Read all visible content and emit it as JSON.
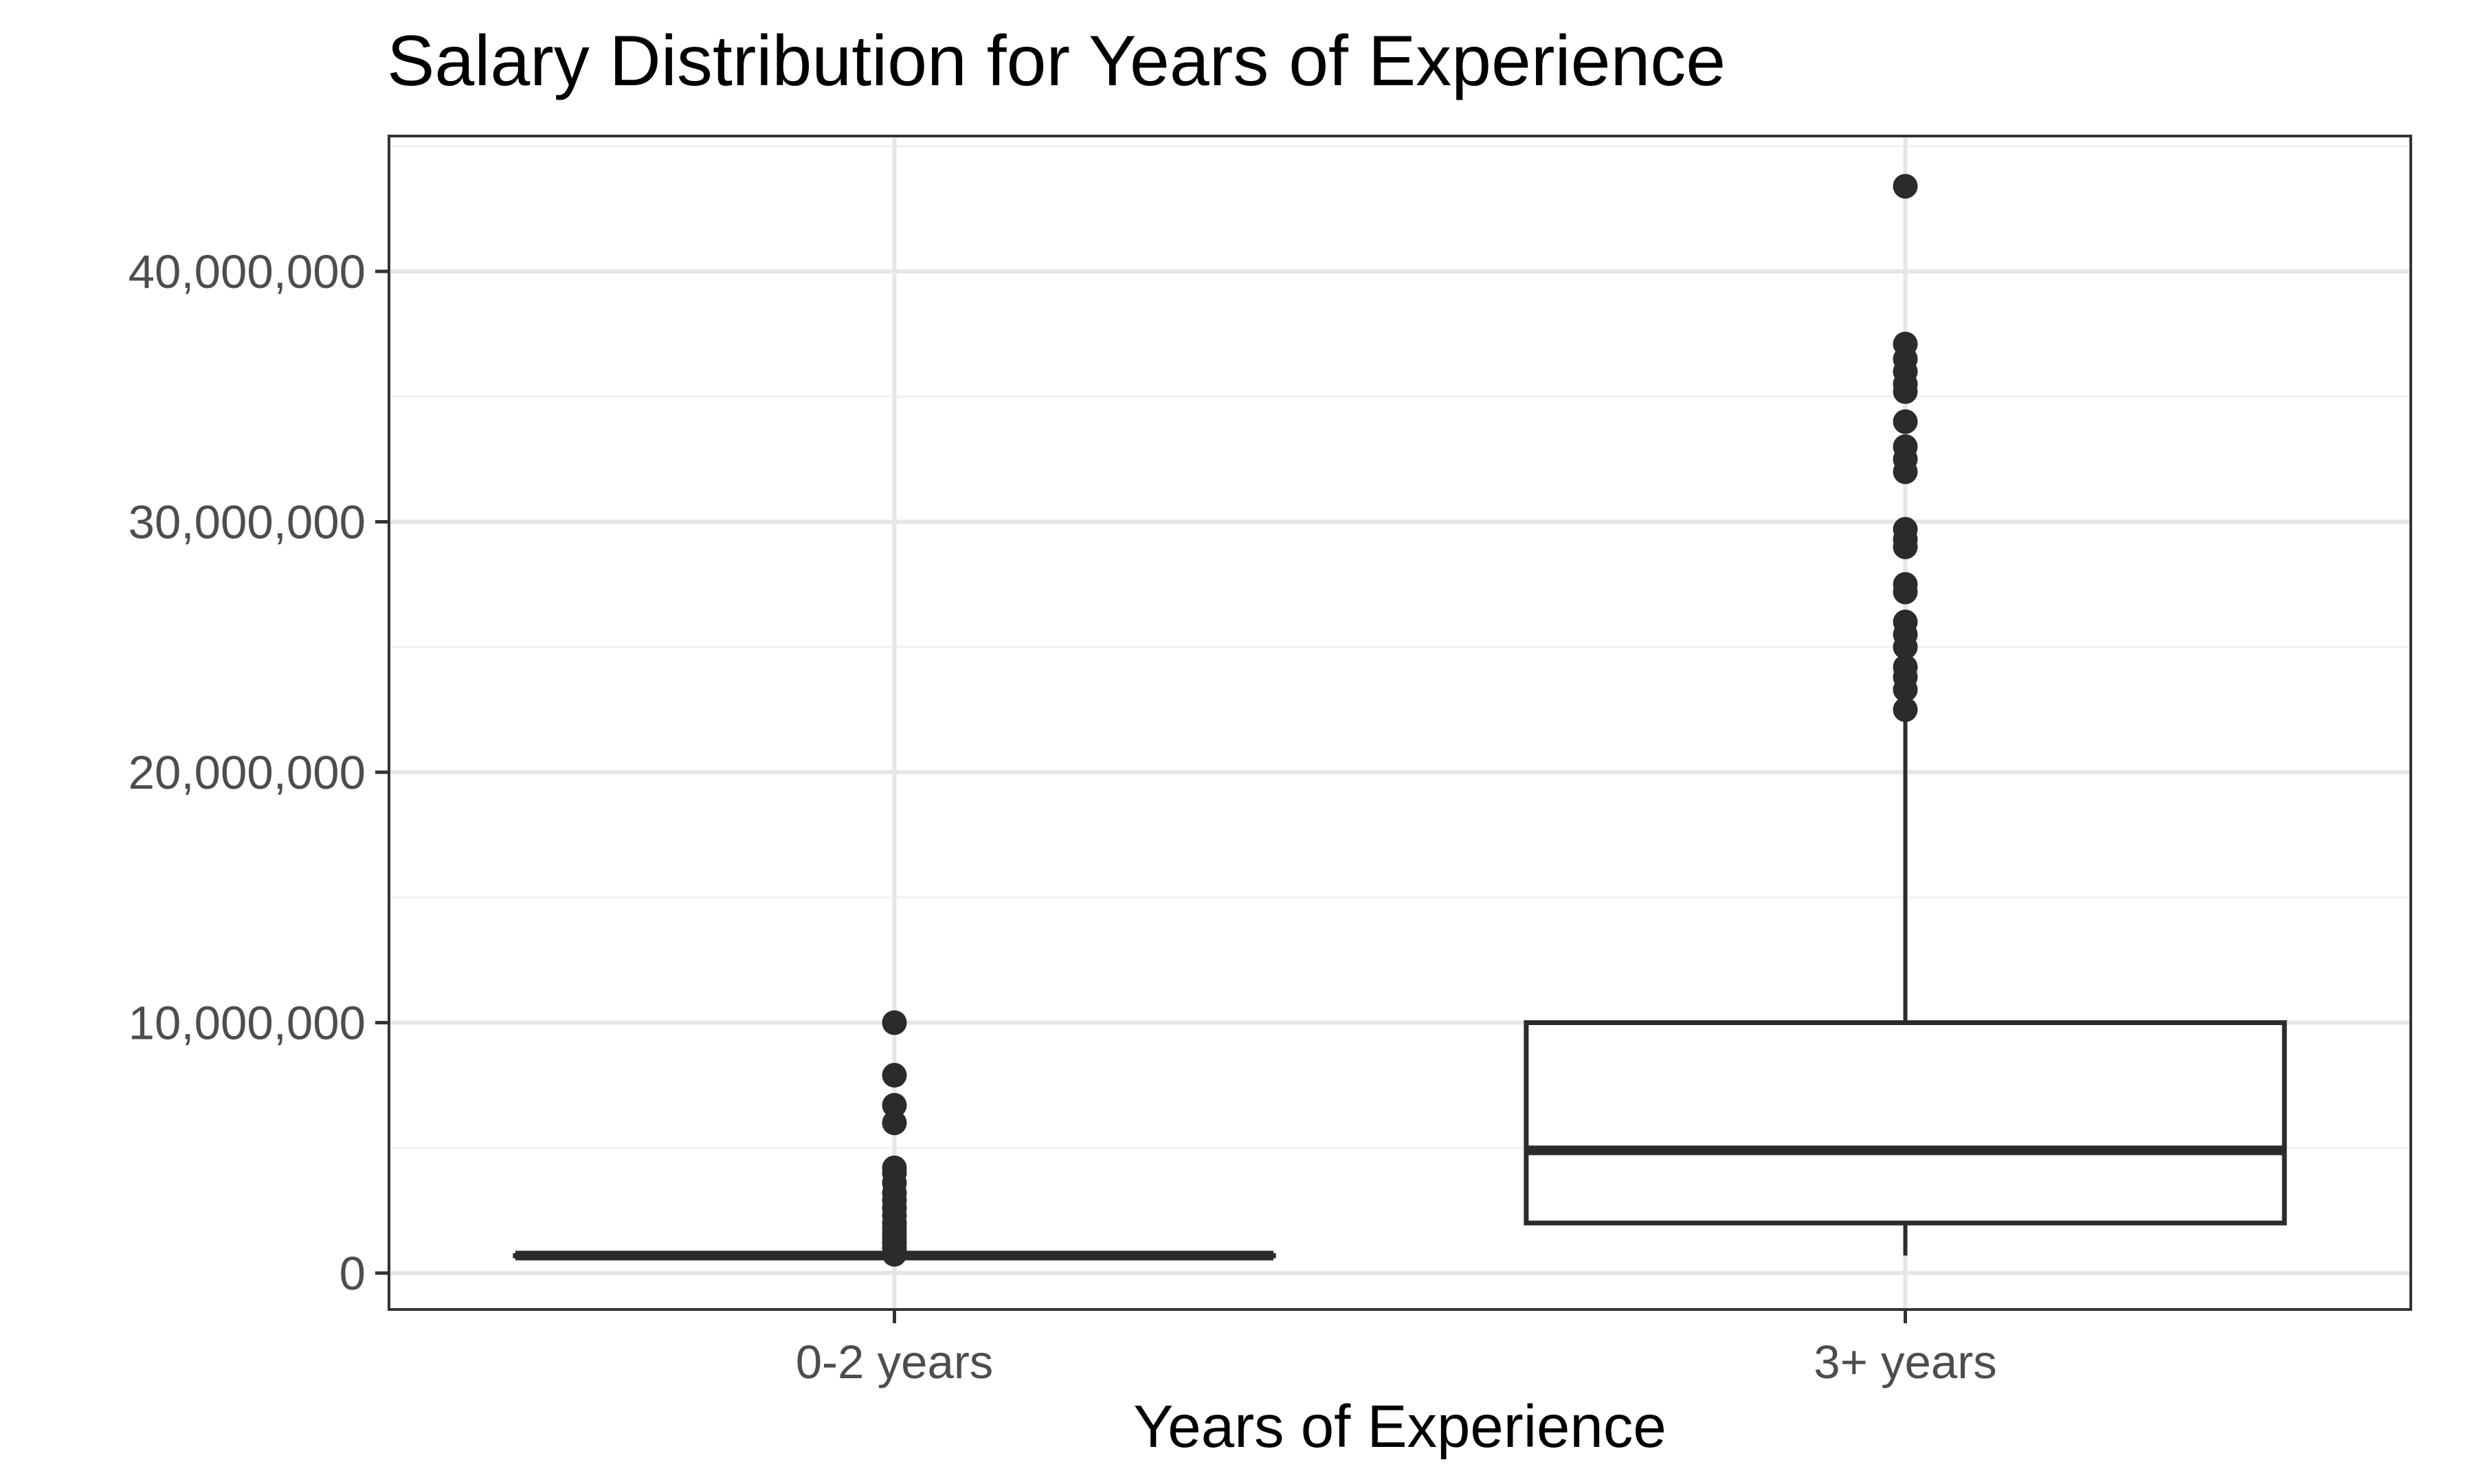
{
  "chart_data": {
    "type": "box",
    "title": "Salary Distribution for Years of Experience",
    "xlabel": "Years of Experience",
    "ylabel": "",
    "categories": [
      "0-2 years",
      "3+ years"
    ],
    "ylim": [
      -1400000,
      45200000
    ],
    "yticks": [
      0,
      10000000,
      20000000,
      30000000,
      40000000
    ],
    "ytick_labels": [
      "0",
      "10,000,000",
      "20,000,000",
      "30,000,000",
      "40,000,000"
    ],
    "grid": true,
    "boxes": [
      {
        "category": "0-2 years",
        "whisker_low": 700000,
        "q1": 700000,
        "median": 700000,
        "q3": 700000,
        "whisker_high": 700000,
        "outliers": [
          750000,
          1000000,
          1200000,
          1400000,
          1600000,
          1800000,
          2000000,
          2300000,
          2600000,
          2900000,
          3200000,
          3600000,
          4000000,
          4200000,
          6000000,
          6700000,
          7900000,
          10000000
        ]
      },
      {
        "category": "3+ years",
        "whisker_low": 700000,
        "q1": 2000000,
        "median": 4900000,
        "q3": 10000000,
        "whisker_high": 22500000,
        "outliers": [
          22500000,
          23300000,
          23800000,
          24200000,
          25000000,
          25500000,
          26000000,
          27200000,
          27500000,
          29000000,
          29300000,
          29700000,
          32000000,
          32500000,
          33000000,
          34000000,
          35200000,
          35500000,
          36000000,
          36500000,
          37100000,
          43400000
        ]
      }
    ]
  },
  "colors": {
    "box_stroke": "#2b2b2b",
    "point": "#2b2b2b",
    "grid_major": "#e6e6e6",
    "grid_minor": "#f0f0f0",
    "panel_border": "#333333",
    "tick_label": "#4d4d4d",
    "title": "#000000"
  }
}
